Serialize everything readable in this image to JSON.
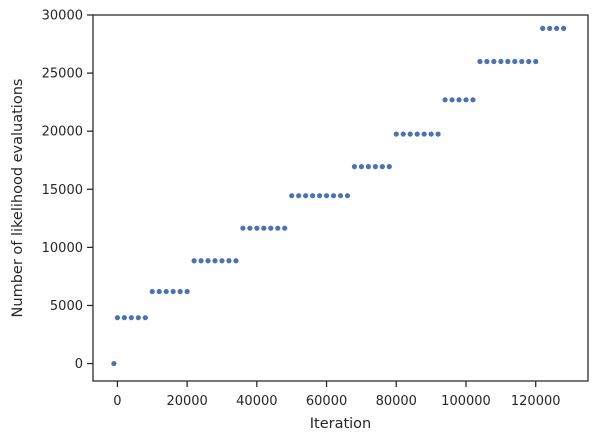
{
  "chart_data": {
    "type": "scatter",
    "title": "",
    "xlabel": "Iteration",
    "ylabel": "Number of likelihood evaluations",
    "xlim": [
      -7000,
      135000
    ],
    "ylim": [
      -1500,
      30000
    ],
    "xticks": [
      0,
      20000,
      40000,
      60000,
      80000,
      100000,
      120000
    ],
    "yticks": [
      0,
      5000,
      10000,
      15000,
      20000,
      25000,
      30000
    ],
    "grid": false,
    "legend": "none",
    "colors": {
      "points": "#4c72b0",
      "axes": "#262626",
      "background": "#ffffff"
    },
    "series": [
      {
        "points": [
          [
            -1000,
            0
          ],
          [
            0,
            3950
          ],
          [
            2000,
            3950
          ],
          [
            4000,
            3950
          ],
          [
            6000,
            3950
          ],
          [
            8000,
            3950
          ],
          [
            10000,
            6200
          ],
          [
            12000,
            6200
          ],
          [
            14000,
            6200
          ],
          [
            16000,
            6200
          ],
          [
            18000,
            6200
          ],
          [
            20000,
            6200
          ],
          [
            22000,
            8850
          ],
          [
            24000,
            8850
          ],
          [
            26000,
            8850
          ],
          [
            28000,
            8850
          ],
          [
            30000,
            8850
          ],
          [
            32000,
            8850
          ],
          [
            34000,
            8850
          ],
          [
            36000,
            11650
          ],
          [
            38000,
            11650
          ],
          [
            40000,
            11650
          ],
          [
            42000,
            11650
          ],
          [
            44000,
            11650
          ],
          [
            46000,
            11650
          ],
          [
            48000,
            11650
          ],
          [
            50000,
            14450
          ],
          [
            52000,
            14450
          ],
          [
            54000,
            14450
          ],
          [
            56000,
            14450
          ],
          [
            58000,
            14450
          ],
          [
            60000,
            14450
          ],
          [
            62000,
            14450
          ],
          [
            64000,
            14450
          ],
          [
            66000,
            14450
          ],
          [
            68000,
            16950
          ],
          [
            70000,
            16950
          ],
          [
            72000,
            16950
          ],
          [
            74000,
            16950
          ],
          [
            76000,
            16950
          ],
          [
            78000,
            16950
          ],
          [
            80000,
            19750
          ],
          [
            82000,
            19750
          ],
          [
            84000,
            19750
          ],
          [
            86000,
            19750
          ],
          [
            88000,
            19750
          ],
          [
            90000,
            19750
          ],
          [
            92000,
            19750
          ],
          [
            94000,
            22700
          ],
          [
            96000,
            22700
          ],
          [
            98000,
            22700
          ],
          [
            100000,
            22700
          ],
          [
            102000,
            22700
          ],
          [
            104000,
            26000
          ],
          [
            106000,
            26000
          ],
          [
            108000,
            26000
          ],
          [
            110000,
            26000
          ],
          [
            112000,
            26000
          ],
          [
            114000,
            26000
          ],
          [
            116000,
            26000
          ],
          [
            118000,
            26000
          ],
          [
            120000,
            26000
          ],
          [
            122000,
            28850
          ],
          [
            124000,
            28850
          ],
          [
            126000,
            28850
          ],
          [
            128000,
            28850
          ]
        ]
      }
    ]
  }
}
